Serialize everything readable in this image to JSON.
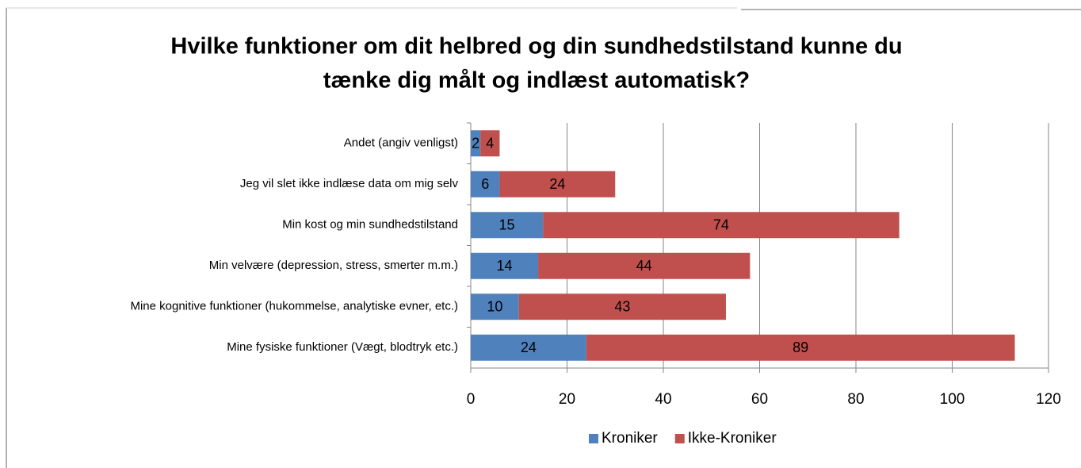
{
  "chart_data": {
    "type": "stacked_bar_horizontal",
    "title": [
      "Hvilke funktioner om dit helbred og din sundhedstilstand kunne du",
      "tænke dig målt og indlæst automatisk?"
    ],
    "categories": [
      "Andet (angiv venligst)",
      "Jeg vil slet ikke indlæse data om mig selv",
      "Min kost og min sundhedstilstand",
      "Min velvære (depression, stress, smerter m.m.)",
      "Mine kognitive funktioner (hukommelse, analytiske evner, etc.)",
      "Mine fysiske funktioner (Vægt, blodtryk etc.)"
    ],
    "series": [
      {
        "name": "Kroniker",
        "color": "#4f81bd",
        "values": [
          2,
          6,
          15,
          14,
          10,
          24
        ]
      },
      {
        "name": "Ikke-Kroniker",
        "color": "#c0504d",
        "values": [
          4,
          24,
          74,
          44,
          43,
          89
        ]
      }
    ],
    "xlim": [
      0,
      120
    ],
    "xticks": [
      0,
      20,
      40,
      60,
      80,
      100,
      120
    ],
    "grid": true,
    "legend": "bottom"
  }
}
